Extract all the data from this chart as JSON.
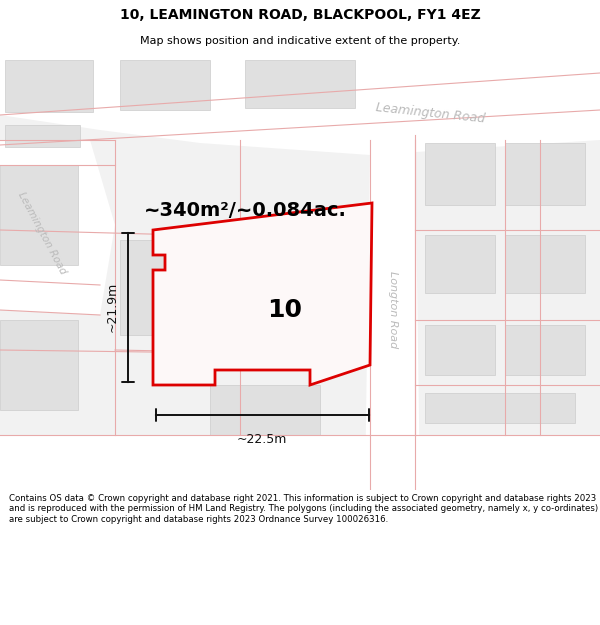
{
  "title": "10, LEAMINGTON ROAD, BLACKPOOL, FY1 4EZ",
  "subtitle": "Map shows position and indicative extent of the property.",
  "footer": "Contains OS data © Crown copyright and database right 2021. This information is subject to Crown copyright and database rights 2023 and is reproduced with the permission of HM Land Registry. The polygons (including the associated geometry, namely x, y co-ordinates) are subject to Crown copyright and database rights 2023 Ordnance Survey 100026316.",
  "area_text": "~340m²/~0.084ac.",
  "label_10": "10",
  "dim_width": "~22.5m",
  "dim_height": "~21.9m",
  "road_label_leamington_top": "Leamington Road",
  "road_label_leamington_left": "Leamington Road",
  "road_label_longton": "Longton Road",
  "bg_color": "#f2f2f2",
  "road_fill": "#ffffff",
  "block_fill": "#e0e0e0",
  "block_edge": "#cccccc",
  "road_line": "#e8aaaa",
  "plot_color": "#dd0000",
  "plot_fill": "#fdf8f8",
  "dim_line_color": "#111111",
  "text_road_color": "#bbbbbb",
  "title_fontsize": 10,
  "subtitle_fontsize": 8,
  "footer_fontsize": 6.2,
  "area_fontsize": 14,
  "label_fontsize": 18,
  "dim_fontsize": 9,
  "road_label_fontsize": 9
}
